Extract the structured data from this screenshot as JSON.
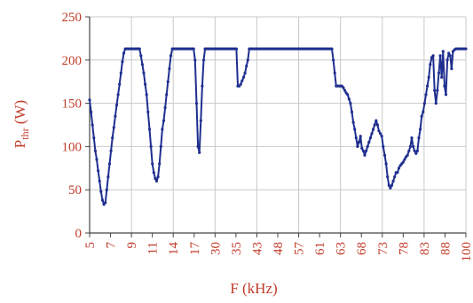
{
  "chart_data": {
    "type": "line",
    "title": "",
    "xlabel": "F (kHz)",
    "ylabel_main": "P",
    "ylabel_sub": "thr",
    "ylabel_unit": " (W)",
    "ylim": [
      0,
      250
    ],
    "yticks": [
      0,
      50,
      100,
      150,
      200,
      250
    ],
    "xtick_labels": [
      "5",
      "7",
      "9",
      "11",
      "14",
      "17",
      "30",
      "35",
      "43",
      "48",
      "57",
      "61",
      "63",
      "68",
      "73",
      "78",
      "83",
      "88",
      "100"
    ],
    "grid": true,
    "colors": {
      "series": "#1f2f8f",
      "text": "#c23b2a",
      "grid": "#c8c8c8"
    },
    "series": [
      {
        "values": [
          154,
          140,
          125,
          110,
          95,
          85,
          72,
          60,
          48,
          38,
          33,
          35,
          50,
          65,
          80,
          95,
          110,
          122,
          135,
          148,
          160,
          172,
          185,
          198,
          208,
          213,
          213,
          213,
          213,
          213,
          213,
          213,
          213,
          213,
          213,
          213,
          205,
          195,
          185,
          172,
          160,
          140,
          120,
          100,
          80,
          70,
          63,
          60,
          65,
          80,
          100,
          120,
          130,
          145,
          160,
          175,
          190,
          205,
          213,
          213,
          213,
          213,
          213,
          213,
          213,
          213,
          213,
          213,
          213,
          213,
          213,
          213,
          213,
          213,
          200,
          150,
          100,
          93,
          130,
          170,
          200,
          213,
          213,
          213,
          213,
          213,
          213,
          213,
          213,
          213,
          213,
          213,
          213,
          213,
          213,
          213,
          213,
          213,
          213,
          213,
          213,
          213,
          213,
          213,
          170,
          170,
          172,
          176,
          180,
          185,
          193,
          200,
          213,
          213,
          213,
          213,
          213,
          213,
          213,
          213,
          213,
          213,
          213,
          213,
          213,
          213,
          213,
          213,
          213,
          213,
          213,
          213,
          213,
          213,
          213,
          213,
          213,
          213,
          213,
          213,
          213,
          213,
          213,
          213,
          213,
          213,
          213,
          213,
          213,
          213,
          213,
          213,
          213,
          213,
          213,
          213,
          213,
          213,
          213,
          213,
          213,
          213,
          213,
          213,
          213,
          213,
          213,
          213,
          213,
          213,
          213,
          200,
          185,
          170,
          170,
          170,
          170,
          170,
          168,
          165,
          162,
          160,
          155,
          150,
          140,
          128,
          120,
          110,
          100,
          105,
          112,
          98,
          95,
          90,
          95,
          100,
          105,
          110,
          115,
          120,
          125,
          130,
          125,
          118,
          115,
          112,
          100,
          90,
          80,
          65,
          55,
          52,
          55,
          60,
          65,
          70,
          70,
          75,
          78,
          80,
          82,
          85,
          88,
          90,
          95,
          100,
          110,
          100,
          95,
          92,
          95,
          110,
          120,
          135,
          140,
          150,
          160,
          170,
          180,
          195,
          203,
          205,
          165,
          150,
          165,
          185,
          205,
          180,
          210,
          170,
          160,
          200,
          208,
          205,
          190,
          210,
          212,
          213,
          213,
          213,
          213,
          213,
          213,
          213,
          213
        ]
      }
    ]
  }
}
